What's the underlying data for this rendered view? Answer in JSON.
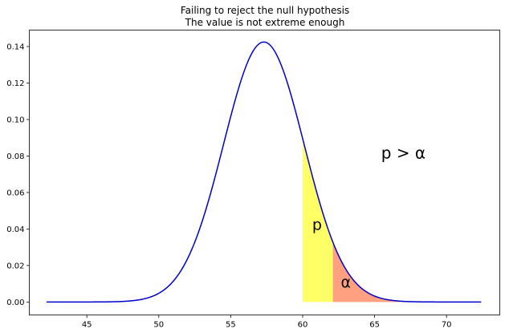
{
  "chart_data": {
    "type": "line",
    "title": "Failing to reject the null hypothesis",
    "subtitle": "The value is not extreme enough",
    "xlabel": "",
    "ylabel": "",
    "xlim": [
      41.0,
      73.7
    ],
    "ylim": [
      -0.0071,
      0.149
    ],
    "xticks": [
      45,
      50,
      55,
      60,
      65,
      70
    ],
    "yticks": [
      0.0,
      0.02,
      0.04,
      0.06,
      0.08,
      0.1,
      0.12,
      0.14
    ],
    "xtick_labels": [
      "45",
      "50",
      "55",
      "60",
      "65",
      "70"
    ],
    "ytick_labels": [
      "0.00",
      "0.02",
      "0.04",
      "0.06",
      "0.08",
      "0.10",
      "0.12",
      "0.14"
    ],
    "grid": false,
    "legend": null,
    "series": [
      {
        "distribution": "normal",
        "mean": 57.3,
        "sd": 2.8,
        "x_range": [
          42.2,
          72.4
        ],
        "color": "#0000cc"
      }
    ],
    "shaded_regions": [
      {
        "x_from": 60.0,
        "x_to": 62.1,
        "color": "#ffff66"
      },
      {
        "x_from": 62.1,
        "x_to": 72.4,
        "color": "#ffa080"
      }
    ],
    "annotations": [
      {
        "text": "p",
        "x": 61.0,
        "y": 0.042
      },
      {
        "text": "α",
        "x": 63.0,
        "y": 0.0105
      },
      {
        "text": "p > α",
        "x": 67.0,
        "y": 0.081
      }
    ]
  }
}
